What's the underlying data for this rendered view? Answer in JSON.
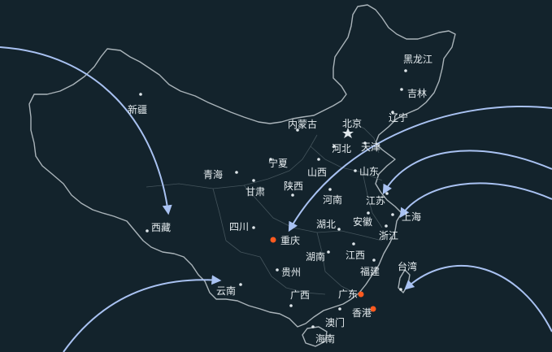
{
  "map": {
    "background": "#13232c",
    "border_color": "#aab4ba",
    "flow_color": "#a9c2f2",
    "highlight_color": "#ff5a1f",
    "places": {
      "heilongjiang": "黑龙江",
      "jilin": "吉林",
      "liaoning": "辽宁",
      "beijing": "北京",
      "tianjin": "天津",
      "hebei": "河北",
      "neimenggu": "内蒙古",
      "shandong": "山东",
      "shanxi": "山西",
      "ningxia": "宁夏",
      "qinghai": "青海",
      "gansu": "甘肃",
      "shaanxi": "陕西",
      "henan": "河南",
      "jiangsu": "江苏",
      "shanghai": "上海",
      "anhui": "安徽",
      "hubei": "湖北",
      "zhejiang": "浙江",
      "sichuan": "四川",
      "chongqing": "重庆",
      "xinjiang": "新疆",
      "xizang": "西藏",
      "hunan": "湖南",
      "jiangxi": "江西",
      "fujian": "福建",
      "taiwan": "台湾",
      "guizhou": "贵州",
      "yunnan": "云南",
      "guangxi": "广西",
      "guangdong": "广东",
      "xianggang": "香港",
      "aomen": "澳门",
      "hainan": "海南"
    },
    "highlighted_places": [
      "重庆",
      "广东",
      "香港"
    ],
    "flows": [
      {
        "from": "西",
        "to": "西藏"
      },
      {
        "from": "东",
        "to": "重庆"
      },
      {
        "from": "东",
        "to": "江苏"
      },
      {
        "from": "东",
        "to": "上海"
      },
      {
        "from": "东",
        "to": "台湾"
      },
      {
        "from": "西南",
        "to": "云南"
      }
    ]
  }
}
